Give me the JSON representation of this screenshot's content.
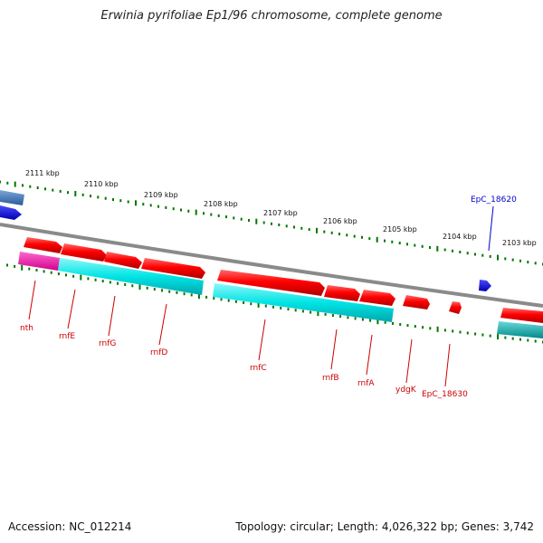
{
  "title": "Erwinia pyrifoliae Ep1/96 chromosome, complete genome",
  "footer": {
    "accession": "Accession: NC_012214",
    "summary": "Topology: circular; Length: 4,026,322 bp; Genes: 3,742"
  },
  "colors": {
    "backbone": "#8a8a8a",
    "forward_gene": "#ff0000",
    "forward_cds": "#ff0000",
    "reverse_cds": "#00e0e0",
    "blue_gene": "#0000ff",
    "label_red": "#cc0000",
    "label_blue": "#0000cc",
    "tick_green": "#007700"
  },
  "scale_labels": [
    "2111 kbp",
    "2110 kbp",
    "2109 kbp",
    "2108 kbp",
    "2107 kbp",
    "2106 kbp",
    "2105 kbp",
    "2104 kbp",
    "2103 kbp"
  ],
  "gene_labels": [
    {
      "text": "nth",
      "color": "red"
    },
    {
      "text": "rnfE",
      "color": "red"
    },
    {
      "text": "rnfG",
      "color": "red"
    },
    {
      "text": "rnfD",
      "color": "red"
    },
    {
      "text": "rnfC",
      "color": "red"
    },
    {
      "text": "rnfB",
      "color": "red"
    },
    {
      "text": "rnfA",
      "color": "red"
    },
    {
      "text": "ydgK",
      "color": "red"
    },
    {
      "text": "EpC_18630",
      "color": "red"
    },
    {
      "text": "EpC_18620",
      "color": "blue"
    }
  ]
}
